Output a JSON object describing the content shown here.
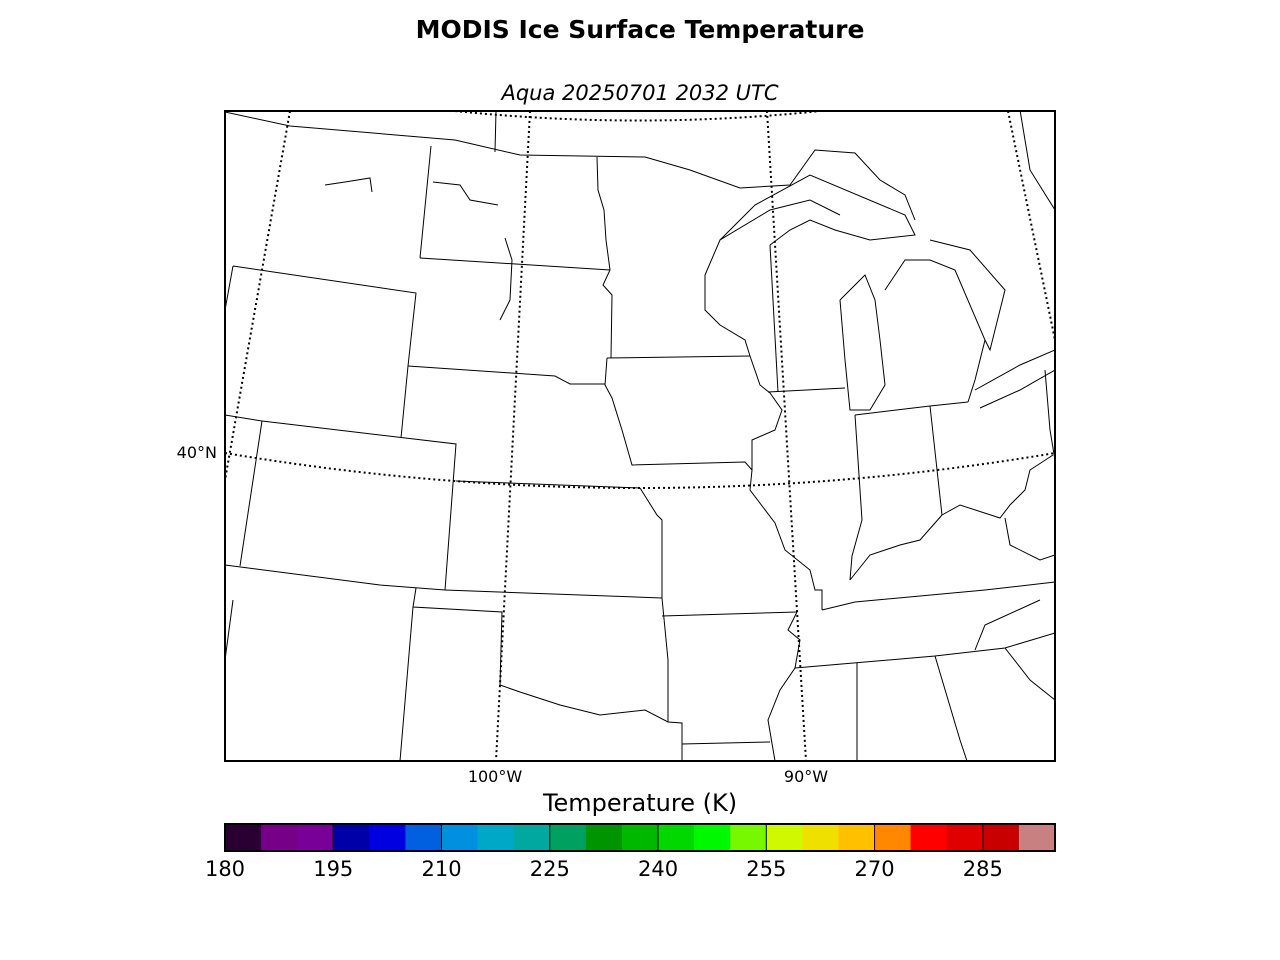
{
  "title": "MODIS Ice Surface Temperature",
  "subtitle": "Aqua 20250701 2032 UTC",
  "map": {
    "lat_labels": [
      "40°N"
    ],
    "lon_labels": [
      "100°W",
      "90°W"
    ]
  },
  "colorbar": {
    "label": "Temperature (K)",
    "lim": [
      180,
      295
    ],
    "ticks": [
      180,
      195,
      210,
      225,
      240,
      255,
      270,
      285
    ],
    "colors": [
      "#2a0033",
      "#760088",
      "#780098",
      "#0000a8",
      "#0000e0",
      "#0060e0",
      "#0090e0",
      "#00a8c8",
      "#00a8a0",
      "#00a060",
      "#009400",
      "#00b800",
      "#00d800",
      "#00f800",
      "#78f800",
      "#d0f800",
      "#f0e000",
      "#ffc000",
      "#ff8800",
      "#ff0000",
      "#e00000",
      "#c80000",
      "#c88080"
    ]
  }
}
